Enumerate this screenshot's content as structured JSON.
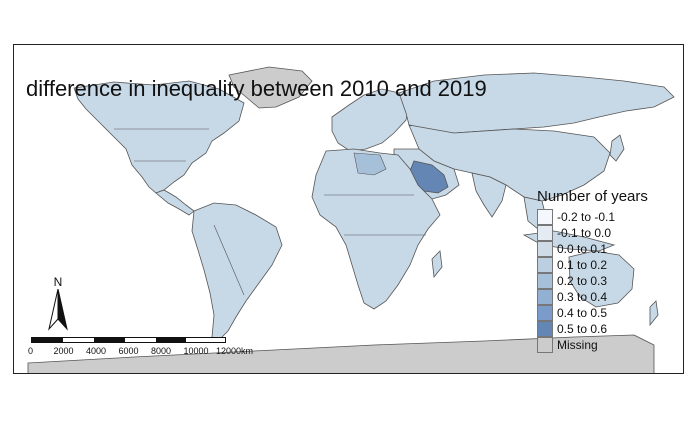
{
  "map": {
    "title": "difference in inequality between 2010 and 2019",
    "legend_title": "Number of years",
    "legend": [
      {
        "label": "-0.2 to -0.1",
        "color": "#f4f7fb"
      },
      {
        "label": "-0.1 to 0.0",
        "color": "#e4ebf3"
      },
      {
        "label": "0.0 to 0.1",
        "color": "#cfdce8"
      },
      {
        "label": "0.1 to 0.2",
        "color": "#bccfe1"
      },
      {
        "label": "0.2 to 0.3",
        "color": "#a7c0da"
      },
      {
        "label": "0.3 to 0.4",
        "color": "#92b0d2"
      },
      {
        "label": "0.4 to 0.5",
        "color": "#7b9ccb"
      },
      {
        "label": "0.5 to 0.6",
        "color": "#6486b4"
      },
      {
        "label": "Missing",
        "color": "#cccccc"
      }
    ],
    "north_label": "N",
    "scale_ticks": [
      "0",
      "2000",
      "4000",
      "6000",
      "8000",
      "10000",
      "12000"
    ],
    "scale_unit": "km",
    "colors": {
      "land": "#c7d8e6",
      "border": "#555555",
      "missing": "#cccccc",
      "highlight": "#6486b4"
    }
  }
}
